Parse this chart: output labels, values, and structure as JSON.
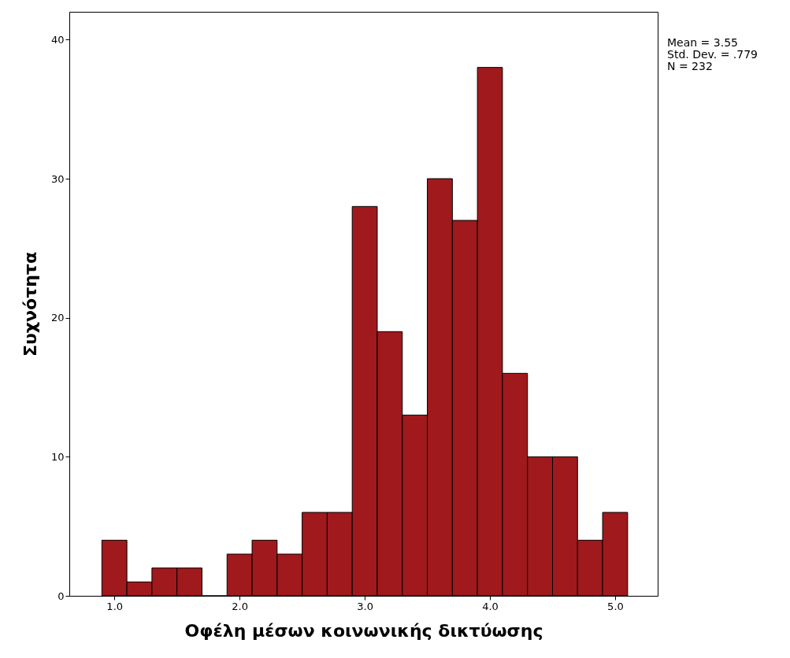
{
  "chart_data": {
    "type": "histogram",
    "xlabel": "Οφέλη μέσων κοινωνικής δικτύωσης",
    "ylabel": "Συχνότητα",
    "bins": [
      0.9,
      1.1,
      1.3,
      1.5,
      1.7,
      1.9,
      2.1,
      2.3,
      2.5,
      2.7,
      2.9,
      3.1,
      3.3,
      3.5,
      3.7,
      3.9,
      4.1,
      4.3,
      4.5,
      4.7,
      4.9,
      5.1
    ],
    "values": [
      4,
      1,
      2,
      2,
      0,
      3,
      4,
      3,
      6,
      6,
      28,
      19,
      13,
      30,
      27,
      38,
      16,
      10,
      10,
      4,
      6
    ],
    "color": "#a0191c",
    "xlim": [
      0.64,
      5.34
    ],
    "ylim": [
      0,
      42
    ],
    "xticks": [
      {
        "value": 1,
        "label": "1.0"
      },
      {
        "value": 2,
        "label": "2.0"
      },
      {
        "value": 3,
        "label": "3.0"
      },
      {
        "value": 4,
        "label": "4.0"
      },
      {
        "value": 5,
        "label": "5.0"
      }
    ],
    "yticks": [
      0,
      10,
      20,
      30,
      40
    ],
    "grid": false,
    "annotations": [
      "Mean = 3.55",
      "Std. Dev. = .779",
      "N = 232"
    ]
  }
}
